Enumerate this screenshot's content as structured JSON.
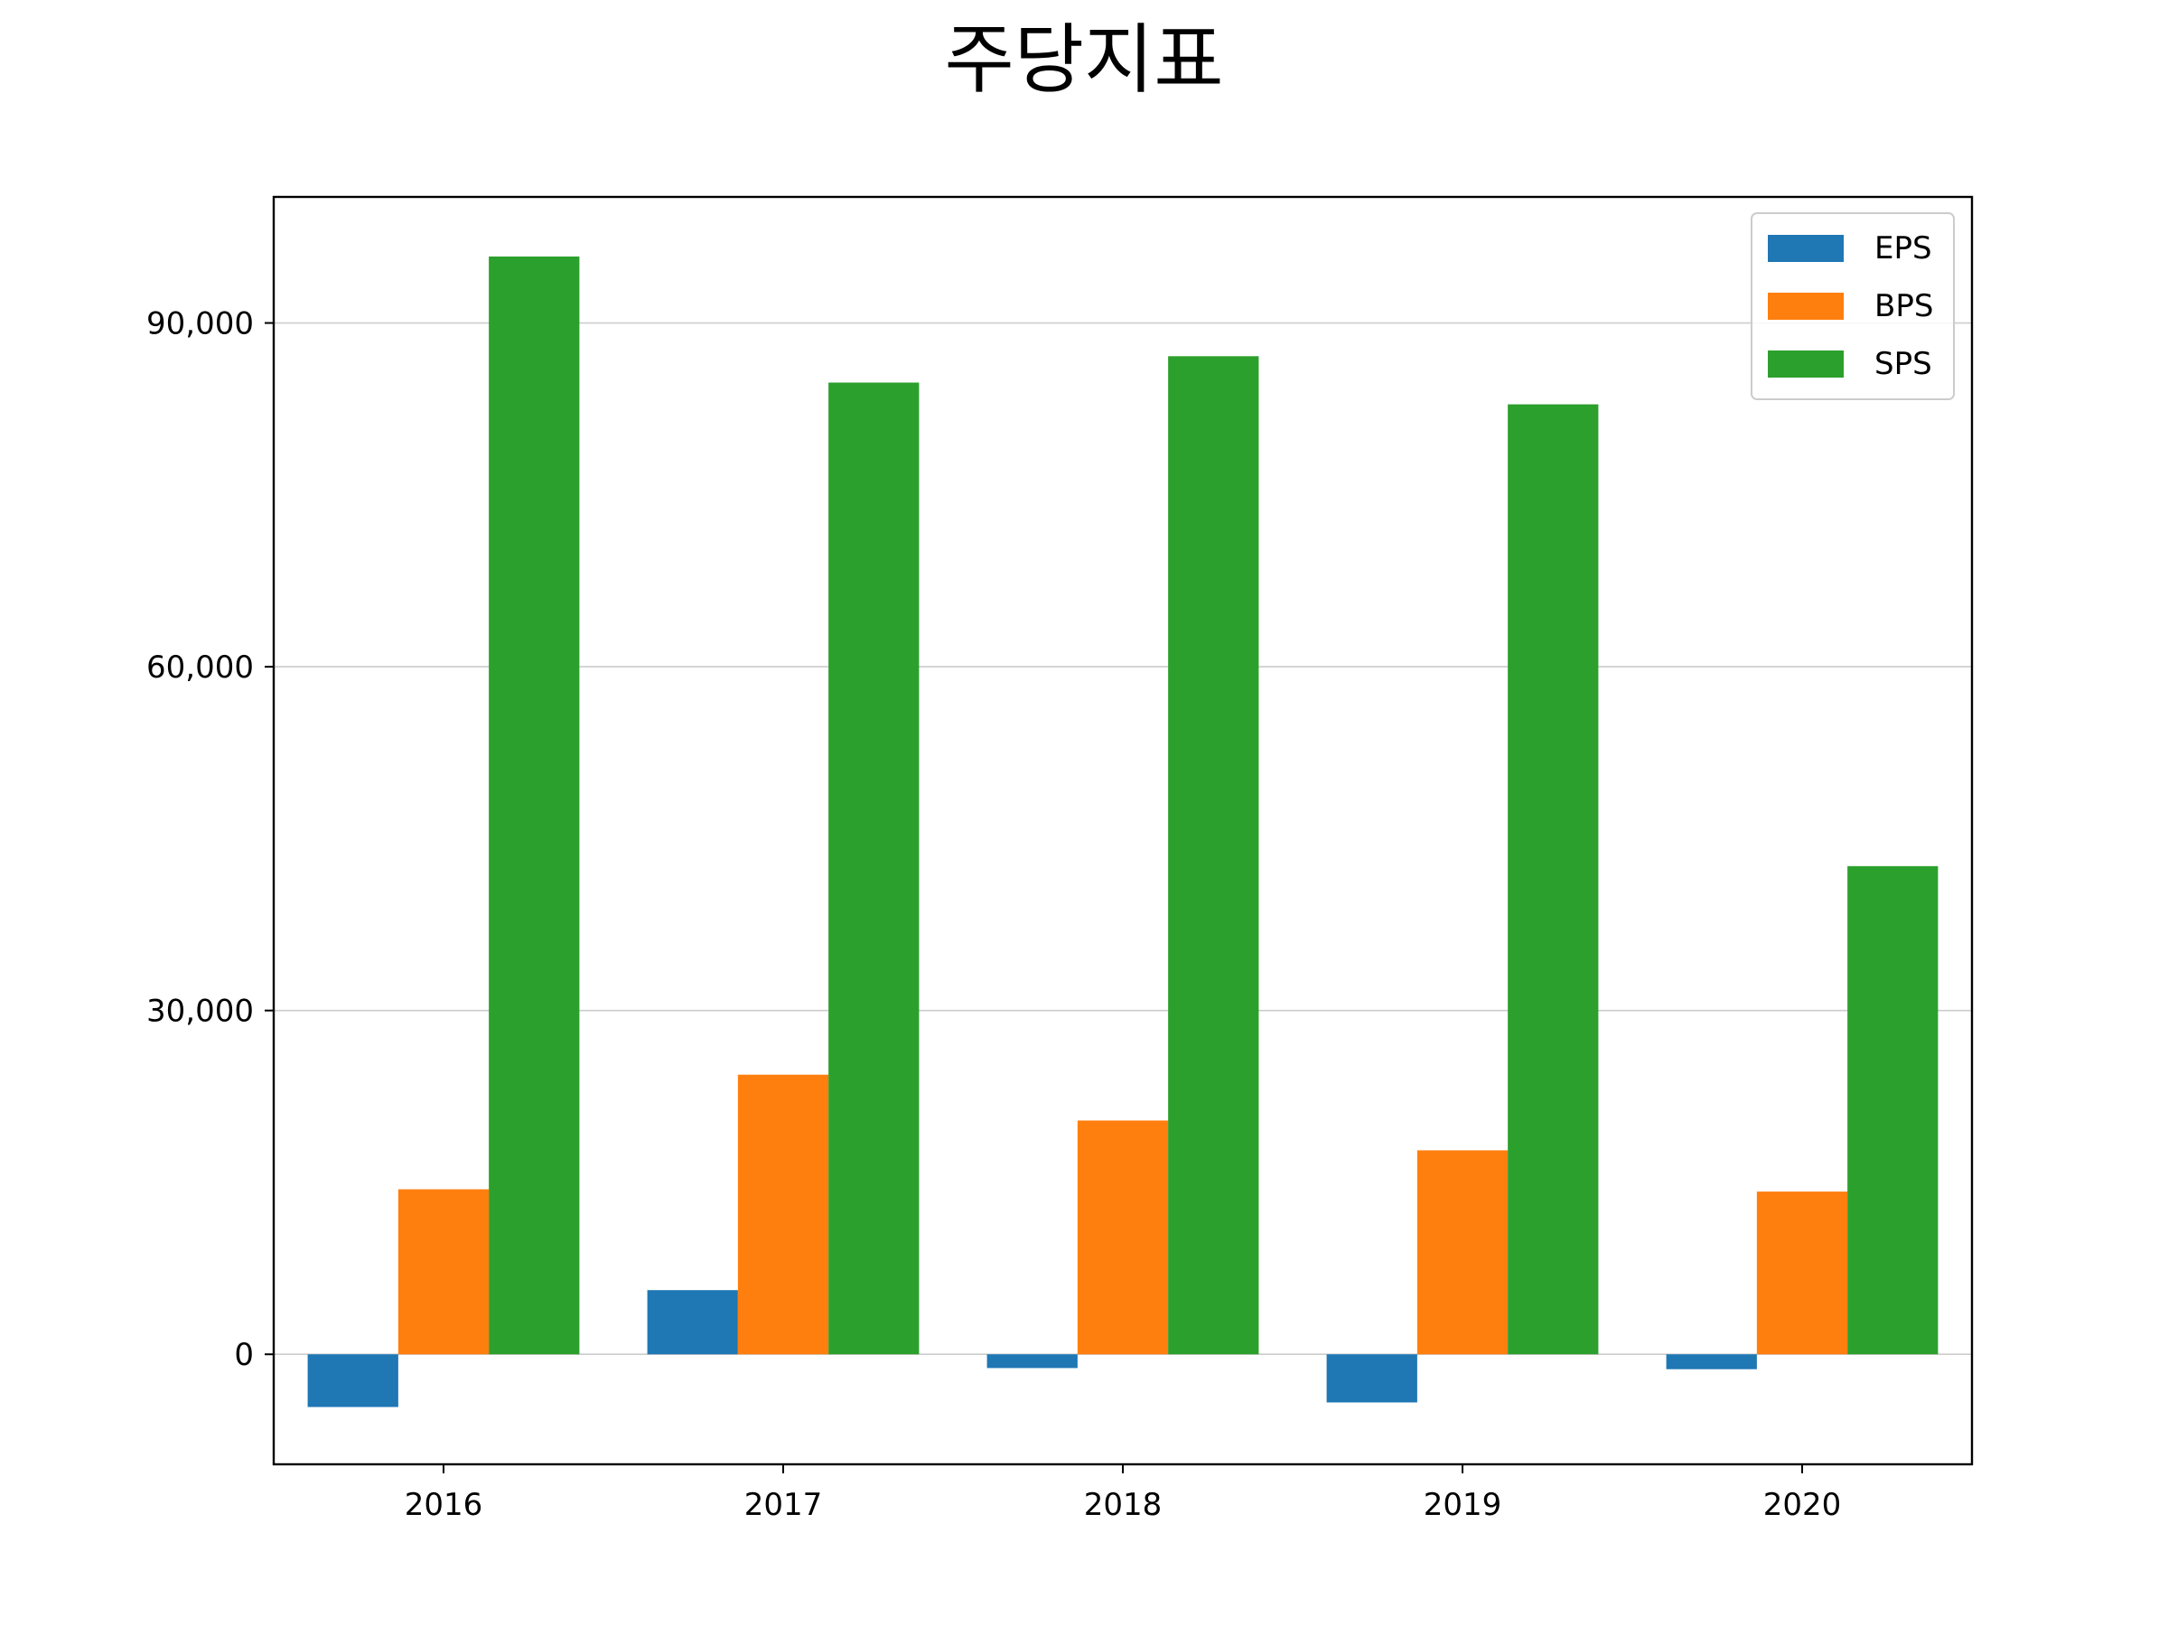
{
  "chart_data": {
    "type": "bar",
    "title": "주당지표",
    "xlabel": "",
    "ylabel": "",
    "categories": [
      "2016",
      "2017",
      "2018",
      "2019",
      "2020"
    ],
    "series": [
      {
        "name": "EPS",
        "color": "#1f77b4",
        "values": [
          -4600,
          5600,
          -1200,
          -4200,
          -1300
        ]
      },
      {
        "name": "BPS",
        "color": "#ff7f0e",
        "values": [
          14400,
          24400,
          20400,
          17800,
          14200
        ]
      },
      {
        "name": "SPS",
        "color": "#2ca02c",
        "values": [
          95800,
          84800,
          87100,
          82900,
          42600
        ]
      }
    ],
    "ylim": [
      -9600,
      101000
    ],
    "yticks": [
      0,
      30000,
      60000,
      90000
    ],
    "ytick_labels": [
      "0",
      "30,000",
      "60,000",
      "90,000"
    ],
    "grid": "y",
    "legend_position": "top-right"
  }
}
